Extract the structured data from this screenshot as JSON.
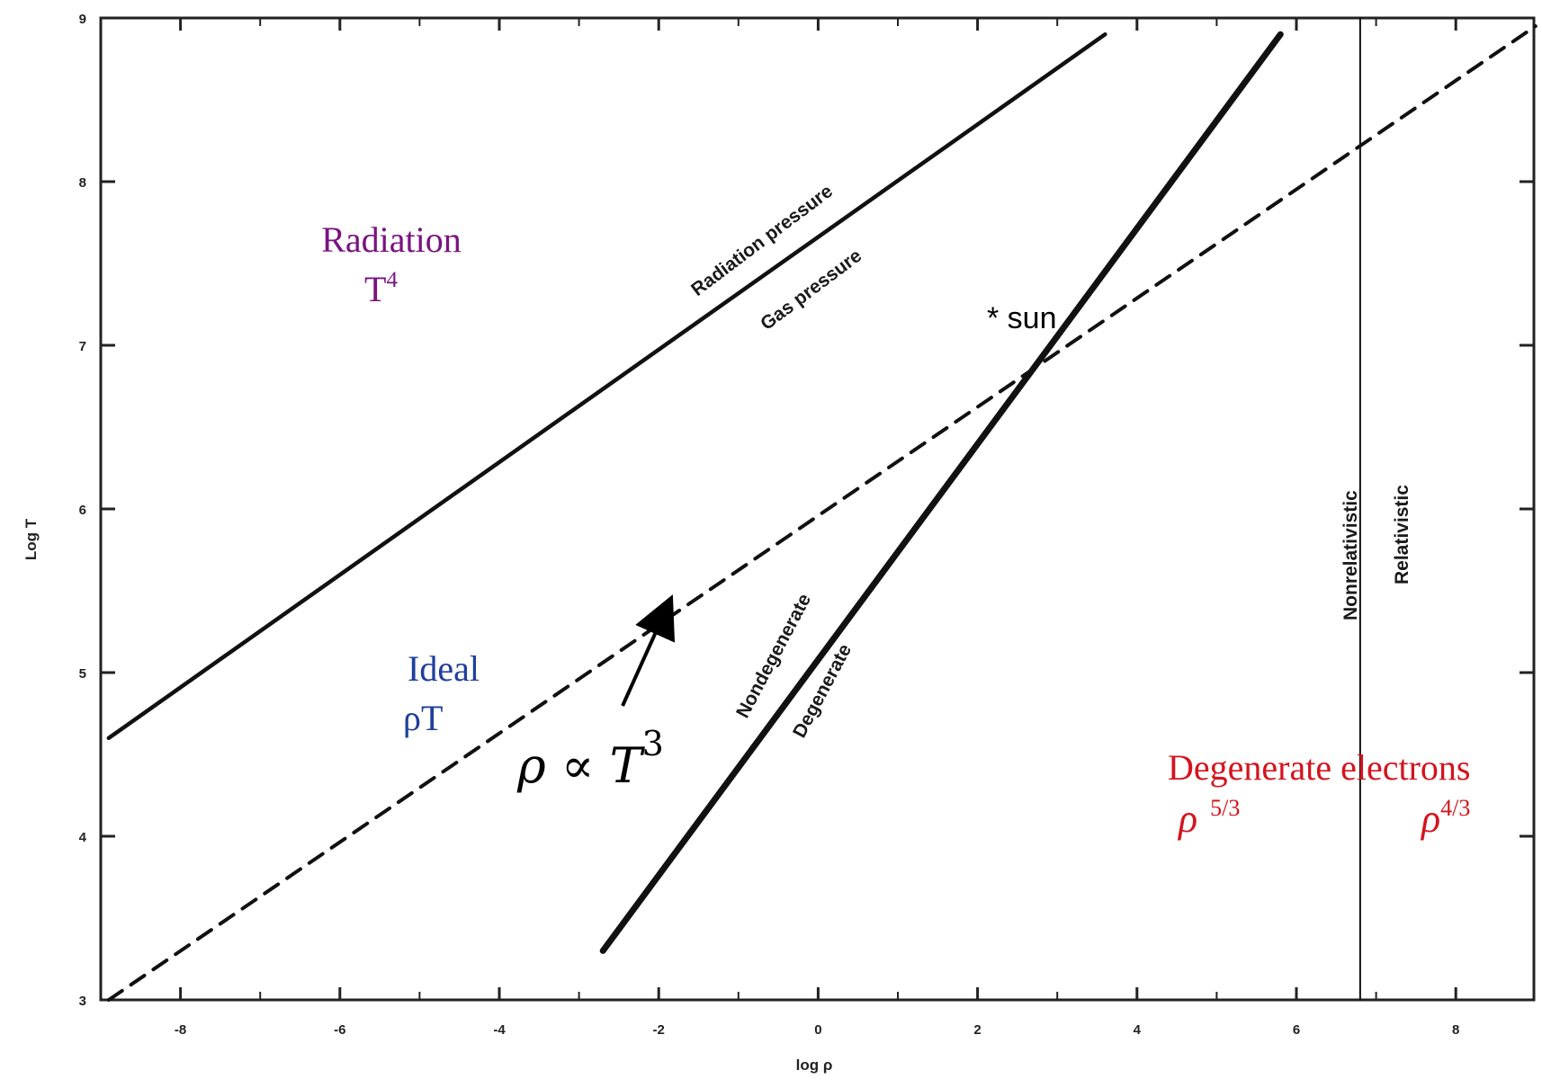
{
  "chart_data": {
    "type": "line",
    "xlabel": "log ρ",
    "ylabel": "Log T",
    "xlim": [
      -9,
      9
    ],
    "ylim": [
      3,
      9
    ],
    "x_ticks": [
      "-8",
      "-6",
      "-4",
      "-2",
      "0",
      "2",
      "4",
      "6",
      "8"
    ],
    "y_ticks": [
      "3",
      "4",
      "5",
      "6",
      "7",
      "8",
      "9"
    ],
    "grid": false,
    "series": [
      {
        "style": "solid",
        "x": [
          -8.9,
          3.6
        ],
        "y": [
          4.6,
          8.9
        ]
      },
      {
        "style": "solid-thick",
        "x": [
          -2.7,
          5.8
        ],
        "y": [
          3.3,
          8.9
        ]
      },
      {
        "style": "dashed",
        "x": [
          -8.9,
          9.0
        ],
        "y": [
          3.0,
          8.95
        ]
      },
      {
        "style": "thin-vertical",
        "x": [
          6.8,
          6.8
        ],
        "y": [
          3.0,
          9.0
        ]
      }
    ],
    "line_labels": {
      "radiation_pressure": "Radiation pressure",
      "gas_pressure": "Gas pressure",
      "nondegenerate": "Nondegenerate",
      "degenerate": "Degenerate",
      "nonrelativistic": "Nonrelativistic",
      "relativistic": "Relativistic"
    },
    "annotations": {
      "radiation": "Radiation",
      "radiation_t": "T",
      "radiation_exp": "4",
      "ideal": "Ideal",
      "ideal_rho": "ρT",
      "relation": "ρ ∝ T",
      "relation_exp": "3",
      "sun": "* sun",
      "degenerate_electrons": "Degenerate electrons",
      "rho_left": "ρ",
      "rho_left_exp": "5/3",
      "rho_right": "ρ",
      "rho_right_exp": "4/3"
    },
    "colors": {
      "radiation": "#7a1380",
      "ideal": "#1f3f9a",
      "degenerate": "#d4141e"
    }
  }
}
